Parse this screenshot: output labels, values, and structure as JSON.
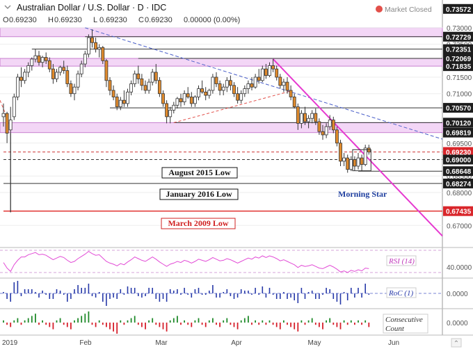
{
  "header": {
    "title": "Australian Dollar / U.S. Dollar · D · IDC",
    "status": "Market Closed",
    "ohlc": [
      {
        "k": "O",
        "v": "0.69230"
      },
      {
        "k": "H",
        "v": "0.69230"
      },
      {
        "k": "L",
        "v": "0.69230"
      },
      {
        "k": "C",
        "v": "0.69230"
      },
      {
        "k": "",
        "v": "0.00000 (0.00%)"
      }
    ]
  },
  "chart_data": {
    "type": "candlestick",
    "instrument": "Australian Dollar / U.S. Dollar",
    "timeframe": "D",
    "price_axis": {
      "range": [
        0.665,
        0.738
      ],
      "ticks": [
        "0.73000",
        "0.72500",
        "0.71500",
        "0.71000",
        "0.69500",
        "0.68500",
        "0.68000",
        "0.67000"
      ]
    },
    "price_markers": [
      {
        "value": 0.73572,
        "label": "0.73572",
        "style": "dark"
      },
      {
        "value": 0.72729,
        "label": "0.72729",
        "style": "dark"
      },
      {
        "value": 0.72351,
        "label": "0.72351",
        "style": "dark"
      },
      {
        "value": 0.72069,
        "label": "0.72069",
        "style": "dark"
      },
      {
        "value": 0.71835,
        "label": "0.71835",
        "style": "dark"
      },
      {
        "value": 0.7057,
        "label": "0.70570",
        "style": "dark"
      },
      {
        "value": 0.7012,
        "label": "0.70120",
        "style": "dark"
      },
      {
        "value": 0.69819,
        "label": "0.69819",
        "style": "dark"
      },
      {
        "value": 0.6923,
        "label": "0.69230",
        "style": "red"
      },
      {
        "value": 0.69,
        "label": "0.69000",
        "style": "dark"
      },
      {
        "value": 0.68648,
        "label": "0.68648",
        "style": "dark"
      },
      {
        "value": 0.68274,
        "label": "0.68274",
        "style": "dark"
      },
      {
        "value": 0.67435,
        "label": "0.67435",
        "style": "red"
      }
    ],
    "zones": [
      {
        "from": 0.72729,
        "to": 0.73
      },
      {
        "from": 0.71835,
        "to": 0.72069
      },
      {
        "from": 0.69819,
        "to": 0.7012
      }
    ],
    "levels": [
      {
        "value": 0.72351,
        "color": "#333333",
        "dash": false
      },
      {
        "value": 0.7057,
        "color": "#333333",
        "dash": false
      },
      {
        "value": 0.6923,
        "color": "#cc3333",
        "dash": true
      },
      {
        "value": 0.69,
        "color": "#333333",
        "dash": true
      },
      {
        "value": 0.68648,
        "color": "#333333",
        "dash": false
      },
      {
        "value": 0.68274,
        "color": "#333333",
        "dash": false
      },
      {
        "value": 0.67435,
        "color": "#e0302f",
        "dash": false
      }
    ],
    "annotations": [
      {
        "text": "August 2015 Low",
        "value": 0.69,
        "color": "#111111"
      },
      {
        "text": "January 2016 Low",
        "value": 0.68274,
        "color": "#111111"
      },
      {
        "text": "March 2009 Low",
        "value": 0.67435,
        "color": "#d02020"
      },
      {
        "text": "Morning Star",
        "color": "#1f3f9f"
      }
    ],
    "x_axis": {
      "ticks": [
        "2019",
        "Feb",
        "Mar",
        "Apr",
        "May",
        "Jun"
      ]
    },
    "candles": [
      {
        "o": 0.703,
        "h": 0.707,
        "l": 0.7,
        "c": 0.704
      },
      {
        "o": 0.704,
        "h": 0.7045,
        "l": 0.695,
        "c": 0.698
      },
      {
        "o": 0.699,
        "h": 0.706,
        "l": 0.674,
        "c": 0.702
      },
      {
        "o": 0.703,
        "h": 0.71,
        "l": 0.702,
        "c": 0.709
      },
      {
        "o": 0.709,
        "h": 0.716,
        "l": 0.708,
        "c": 0.715
      },
      {
        "o": 0.715,
        "h": 0.718,
        "l": 0.712,
        "c": 0.714
      },
      {
        "o": 0.714,
        "h": 0.7175,
        "l": 0.713,
        "c": 0.7165
      },
      {
        "o": 0.7165,
        "h": 0.7195,
        "l": 0.715,
        "c": 0.7185
      },
      {
        "o": 0.7185,
        "h": 0.721,
        "l": 0.717,
        "c": 0.7205
      },
      {
        "o": 0.7205,
        "h": 0.7235,
        "l": 0.7195,
        "c": 0.7215
      },
      {
        "o": 0.7215,
        "h": 0.723,
        "l": 0.7185,
        "c": 0.7195
      },
      {
        "o": 0.7195,
        "h": 0.7215,
        "l": 0.718,
        "c": 0.721
      },
      {
        "o": 0.721,
        "h": 0.7225,
        "l": 0.719,
        "c": 0.72
      },
      {
        "o": 0.72,
        "h": 0.721,
        "l": 0.7165,
        "c": 0.7175
      },
      {
        "o": 0.7175,
        "h": 0.719,
        "l": 0.713,
        "c": 0.7145
      },
      {
        "o": 0.7145,
        "h": 0.7175,
        "l": 0.7135,
        "c": 0.7165
      },
      {
        "o": 0.7165,
        "h": 0.7185,
        "l": 0.7155,
        "c": 0.718
      },
      {
        "o": 0.718,
        "h": 0.72,
        "l": 0.716,
        "c": 0.717
      },
      {
        "o": 0.717,
        "h": 0.7185,
        "l": 0.712,
        "c": 0.713
      },
      {
        "o": 0.713,
        "h": 0.714,
        "l": 0.709,
        "c": 0.71
      },
      {
        "o": 0.71,
        "h": 0.713,
        "l": 0.708,
        "c": 0.712
      },
      {
        "o": 0.712,
        "h": 0.717,
        "l": 0.711,
        "c": 0.716
      },
      {
        "o": 0.716,
        "h": 0.72,
        "l": 0.715,
        "c": 0.719
      },
      {
        "o": 0.719,
        "h": 0.723,
        "l": 0.718,
        "c": 0.722
      },
      {
        "o": 0.722,
        "h": 0.728,
        "l": 0.721,
        "c": 0.727
      },
      {
        "o": 0.727,
        "h": 0.7295,
        "l": 0.724,
        "c": 0.7255
      },
      {
        "o": 0.7255,
        "h": 0.727,
        "l": 0.7225,
        "c": 0.7235
      },
      {
        "o": 0.7235,
        "h": 0.725,
        "l": 0.721,
        "c": 0.724
      },
      {
        "o": 0.724,
        "h": 0.7245,
        "l": 0.719,
        "c": 0.72
      },
      {
        "o": 0.72,
        "h": 0.7205,
        "l": 0.712,
        "c": 0.714
      },
      {
        "o": 0.714,
        "h": 0.715,
        "l": 0.7095,
        "c": 0.711
      },
      {
        "o": 0.711,
        "h": 0.7125,
        "l": 0.708,
        "c": 0.709
      },
      {
        "o": 0.709,
        "h": 0.71,
        "l": 0.705,
        "c": 0.706
      },
      {
        "o": 0.706,
        "h": 0.709,
        "l": 0.705,
        "c": 0.708
      },
      {
        "o": 0.708,
        "h": 0.711,
        "l": 0.706,
        "c": 0.707
      },
      {
        "o": 0.707,
        "h": 0.7115,
        "l": 0.706,
        "c": 0.7105
      },
      {
        "o": 0.7105,
        "h": 0.714,
        "l": 0.7095,
        "c": 0.713
      },
      {
        "o": 0.713,
        "h": 0.717,
        "l": 0.712,
        "c": 0.716
      },
      {
        "o": 0.716,
        "h": 0.7185,
        "l": 0.713,
        "c": 0.7145
      },
      {
        "o": 0.7145,
        "h": 0.716,
        "l": 0.711,
        "c": 0.7125
      },
      {
        "o": 0.7125,
        "h": 0.714,
        "l": 0.71,
        "c": 0.711
      },
      {
        "o": 0.711,
        "h": 0.7145,
        "l": 0.71,
        "c": 0.7135
      },
      {
        "o": 0.7135,
        "h": 0.7175,
        "l": 0.7125,
        "c": 0.7165
      },
      {
        "o": 0.7165,
        "h": 0.719,
        "l": 0.713,
        "c": 0.714
      },
      {
        "o": 0.714,
        "h": 0.715,
        "l": 0.709,
        "c": 0.71
      },
      {
        "o": 0.71,
        "h": 0.711,
        "l": 0.706,
        "c": 0.707
      },
      {
        "o": 0.707,
        "h": 0.708,
        "l": 0.701,
        "c": 0.703
      },
      {
        "o": 0.703,
        "h": 0.706,
        "l": 0.701,
        "c": 0.705
      },
      {
        "o": 0.705,
        "h": 0.7075,
        "l": 0.704,
        "c": 0.7065
      },
      {
        "o": 0.7065,
        "h": 0.709,
        "l": 0.7055,
        "c": 0.7085
      },
      {
        "o": 0.7085,
        "h": 0.71,
        "l": 0.706,
        "c": 0.7075
      },
      {
        "o": 0.7075,
        "h": 0.711,
        "l": 0.7065,
        "c": 0.71
      },
      {
        "o": 0.71,
        "h": 0.712,
        "l": 0.7085,
        "c": 0.709
      },
      {
        "o": 0.709,
        "h": 0.7105,
        "l": 0.706,
        "c": 0.707
      },
      {
        "o": 0.707,
        "h": 0.7095,
        "l": 0.706,
        "c": 0.709
      },
      {
        "o": 0.709,
        "h": 0.7125,
        "l": 0.708,
        "c": 0.7115
      },
      {
        "o": 0.7115,
        "h": 0.714,
        "l": 0.71,
        "c": 0.7105
      },
      {
        "o": 0.7105,
        "h": 0.712,
        "l": 0.708,
        "c": 0.7095
      },
      {
        "o": 0.7095,
        "h": 0.7115,
        "l": 0.7085,
        "c": 0.711
      },
      {
        "o": 0.711,
        "h": 0.716,
        "l": 0.71,
        "c": 0.715
      },
      {
        "o": 0.715,
        "h": 0.7165,
        "l": 0.712,
        "c": 0.713
      },
      {
        "o": 0.713,
        "h": 0.714,
        "l": 0.7095,
        "c": 0.711
      },
      {
        "o": 0.711,
        "h": 0.713,
        "l": 0.7095,
        "c": 0.712
      },
      {
        "o": 0.712,
        "h": 0.715,
        "l": 0.7105,
        "c": 0.714
      },
      {
        "o": 0.714,
        "h": 0.7155,
        "l": 0.711,
        "c": 0.7125
      },
      {
        "o": 0.7125,
        "h": 0.7135,
        "l": 0.709,
        "c": 0.71
      },
      {
        "o": 0.71,
        "h": 0.712,
        "l": 0.707,
        "c": 0.708
      },
      {
        "o": 0.708,
        "h": 0.711,
        "l": 0.707,
        "c": 0.71
      },
      {
        "o": 0.71,
        "h": 0.7125,
        "l": 0.709,
        "c": 0.7115
      },
      {
        "o": 0.7115,
        "h": 0.714,
        "l": 0.71,
        "c": 0.713
      },
      {
        "o": 0.713,
        "h": 0.715,
        "l": 0.711,
        "c": 0.712
      },
      {
        "o": 0.712,
        "h": 0.716,
        "l": 0.7115,
        "c": 0.715
      },
      {
        "o": 0.715,
        "h": 0.7175,
        "l": 0.713,
        "c": 0.714
      },
      {
        "o": 0.714,
        "h": 0.7185,
        "l": 0.7135,
        "c": 0.7175
      },
      {
        "o": 0.7175,
        "h": 0.719,
        "l": 0.7145,
        "c": 0.7155
      },
      {
        "o": 0.7155,
        "h": 0.7195,
        "l": 0.715,
        "c": 0.7185
      },
      {
        "o": 0.7185,
        "h": 0.7205,
        "l": 0.7165,
        "c": 0.7175
      },
      {
        "o": 0.7175,
        "h": 0.7185,
        "l": 0.714,
        "c": 0.715
      },
      {
        "o": 0.715,
        "h": 0.716,
        "l": 0.7115,
        "c": 0.7125
      },
      {
        "o": 0.7125,
        "h": 0.7145,
        "l": 0.7105,
        "c": 0.7135
      },
      {
        "o": 0.7135,
        "h": 0.715,
        "l": 0.71,
        "c": 0.711
      },
      {
        "o": 0.711,
        "h": 0.7125,
        "l": 0.708,
        "c": 0.709
      },
      {
        "o": 0.709,
        "h": 0.71,
        "l": 0.7055,
        "c": 0.706
      },
      {
        "o": 0.706,
        "h": 0.707,
        "l": 0.699,
        "c": 0.701
      },
      {
        "o": 0.701,
        "h": 0.705,
        "l": 0.6995,
        "c": 0.704
      },
      {
        "o": 0.704,
        "h": 0.706,
        "l": 0.7005,
        "c": 0.7015
      },
      {
        "o": 0.7015,
        "h": 0.7035,
        "l": 0.6995,
        "c": 0.7025
      },
      {
        "o": 0.7025,
        "h": 0.705,
        "l": 0.701,
        "c": 0.704
      },
      {
        "o": 0.704,
        "h": 0.7055,
        "l": 0.7005,
        "c": 0.7015
      },
      {
        "o": 0.7015,
        "h": 0.7025,
        "l": 0.6975,
        "c": 0.6985
      },
      {
        "o": 0.6985,
        "h": 0.7005,
        "l": 0.696,
        "c": 0.6975
      },
      {
        "o": 0.6975,
        "h": 0.701,
        "l": 0.6965,
        "c": 0.7
      },
      {
        "o": 0.7,
        "h": 0.7035,
        "l": 0.699,
        "c": 0.702
      },
      {
        "o": 0.702,
        "h": 0.703,
        "l": 0.698,
        "c": 0.699
      },
      {
        "o": 0.699,
        "h": 0.7,
        "l": 0.694,
        "c": 0.695
      },
      {
        "o": 0.695,
        "h": 0.696,
        "l": 0.688,
        "c": 0.6895
      },
      {
        "o": 0.6895,
        "h": 0.692,
        "l": 0.688,
        "c": 0.6905
      },
      {
        "o": 0.6905,
        "h": 0.6915,
        "l": 0.686,
        "c": 0.687
      },
      {
        "o": 0.687,
        "h": 0.691,
        "l": 0.6865,
        "c": 0.69
      },
      {
        "o": 0.69,
        "h": 0.691,
        "l": 0.6866,
        "c": 0.688
      },
      {
        "o": 0.688,
        "h": 0.692,
        "l": 0.687,
        "c": 0.6905
      },
      {
        "o": 0.6905,
        "h": 0.6915,
        "l": 0.6866,
        "c": 0.6885
      },
      {
        "o": 0.6885,
        "h": 0.6945,
        "l": 0.688,
        "c": 0.6935
      },
      {
        "o": 0.6935,
        "h": 0.6945,
        "l": 0.6915,
        "c": 0.6923
      }
    ],
    "rsi": {
      "label": "RSI (14)",
      "tick": "40.0000",
      "values": [
        48,
        38,
        32,
        44,
        52,
        58,
        58,
        62,
        64,
        66,
        62,
        63,
        61,
        57,
        53,
        56,
        59,
        57,
        52,
        48,
        50,
        55,
        59,
        63,
        68,
        64,
        61,
        62,
        56,
        50,
        47,
        45,
        42,
        46,
        44,
        49,
        53,
        58,
        55,
        52,
        50,
        54,
        58,
        54,
        49,
        45,
        41,
        45,
        47,
        50,
        48,
        52,
        50,
        47,
        50,
        54,
        52,
        50,
        53,
        57,
        54,
        51,
        52,
        55,
        53,
        50,
        47,
        50,
        53,
        56,
        54,
        58,
        56,
        60,
        57,
        60,
        58,
        55,
        51,
        53,
        50,
        47,
        44,
        39,
        43,
        41,
        42,
        44,
        41,
        38,
        37,
        40,
        43,
        40,
        36,
        31,
        33,
        30,
        34,
        32,
        35,
        33,
        38,
        37
      ]
    },
    "roc": {
      "label": "RoC (1)",
      "tick": "0.0000",
      "values": [
        0.1,
        -0.4,
        -0.6,
        0.8,
        0.9,
        -0.2,
        0.3,
        0.3,
        0.3,
        0.1,
        -0.3,
        0.2,
        -0.1,
        -0.4,
        -0.4,
        0.3,
        0.2,
        -0.1,
        -0.6,
        -0.4,
        0.3,
        0.6,
        0.4,
        0.4,
        0.7,
        -0.2,
        -0.3,
        0.1,
        -0.6,
        -0.9,
        -0.4,
        -0.3,
        -0.4,
        0.3,
        -0.1,
        0.5,
        0.4,
        0.4,
        -0.2,
        -0.3,
        -0.2,
        0.4,
        0.4,
        -0.4,
        -0.6,
        -0.4,
        -0.6,
        0.3,
        0.2,
        0.3,
        -0.1,
        0.4,
        -0.1,
        -0.3,
        0.3,
        0.4,
        -0.1,
        -0.1,
        0.2,
        0.6,
        -0.3,
        -0.3,
        0.1,
        0.3,
        -0.2,
        -0.4,
        -0.3,
        0.3,
        0.2,
        0.2,
        -0.1,
        0.4,
        -0.1,
        0.5,
        -0.3,
        0.4,
        -0.1,
        -0.4,
        -0.4,
        0.1,
        -0.4,
        -0.3,
        -0.5,
        -0.7,
        0.4,
        -0.4,
        0.1,
        0.2,
        -0.4,
        -0.4,
        -0.1,
        0.4,
        0.3,
        -0.4,
        -0.6,
        -0.8,
        0.1,
        -0.5,
        0.4,
        -0.3,
        0.4,
        -0.3,
        0.7,
        -0.1
      ]
    },
    "consecutive_count": {
      "label": "Consecutive Count",
      "tick": "0.0000",
      "values": [
        1,
        -1,
        -2,
        1,
        2,
        -1,
        1,
        2,
        3,
        4,
        -1,
        1,
        -1,
        -2,
        -3,
        1,
        2,
        -1,
        -2,
        -3,
        1,
        2,
        3,
        4,
        5,
        -1,
        -2,
        1,
        -1,
        -2,
        -3,
        -4,
        -5,
        1,
        -1,
        1,
        2,
        3,
        -1,
        -2,
        -3,
        1,
        2,
        -1,
        -2,
        -3,
        -4,
        1,
        2,
        3,
        -1,
        1,
        -1,
        -2,
        1,
        2,
        -1,
        -2,
        1,
        2,
        -1,
        -2,
        1,
        2,
        -1,
        -2,
        -3,
        1,
        2,
        3,
        -1,
        1,
        -1,
        1,
        -1,
        1,
        -1,
        -2,
        -3,
        1,
        -1,
        -2,
        -3,
        -4,
        1,
        -1,
        1,
        2,
        -1,
        -2,
        -3,
        1,
        2,
        -1,
        -2,
        -3,
        1,
        -1,
        1,
        -1,
        1,
        -1,
        1,
        -2
      ]
    }
  }
}
